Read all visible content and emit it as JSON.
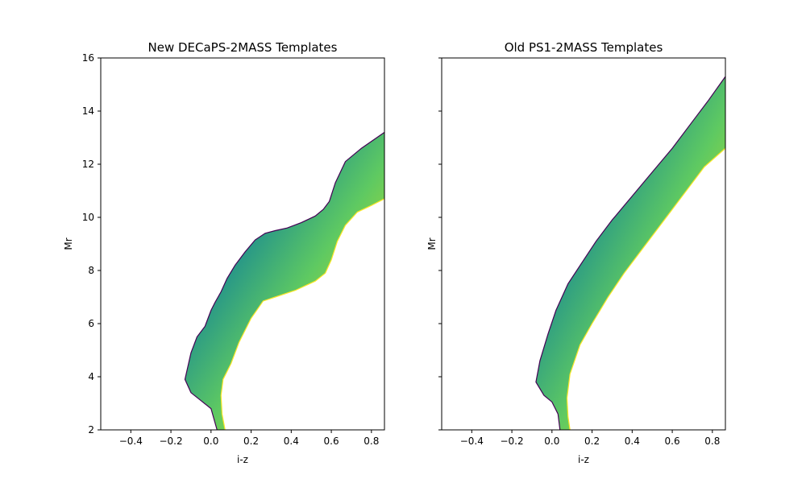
{
  "chart_data": [
    {
      "type": "area",
      "title": "New DECaPS-2MASS Templates",
      "xlabel": "i-z",
      "ylabel": "Mr",
      "xlim": [
        -0.55,
        0.865
      ],
      "ylim": [
        2,
        16
      ],
      "xticks": [
        "−0.4",
        "−0.2",
        "0.0",
        "0.2",
        "0.4",
        "0.6",
        "0.8"
      ],
      "xtick_values": [
        -0.4,
        -0.2,
        0.0,
        0.2,
        0.4,
        0.6,
        0.8
      ],
      "yticks": [
        "2",
        "4",
        "6",
        "8",
        "10",
        "12",
        "14",
        "16"
      ],
      "ytick_values": [
        2,
        4,
        6,
        8,
        10,
        12,
        14,
        16
      ],
      "show_ytick_labels": true,
      "colormap": "viridis",
      "series": [
        {
          "edge": "upper",
          "x": [
            0.03,
            0.0,
            -0.05,
            -0.1,
            -0.13,
            -0.1,
            -0.07,
            -0.03,
            0.0,
            0.02,
            0.05,
            0.08,
            0.12,
            0.17,
            0.22,
            0.27,
            0.32,
            0.38,
            0.45,
            0.52,
            0.56,
            0.59,
            0.62,
            0.67,
            0.75,
            0.865
          ],
          "y": [
            2.0,
            2.8,
            3.1,
            3.4,
            3.9,
            4.9,
            5.5,
            5.9,
            6.5,
            6.8,
            7.2,
            7.7,
            8.2,
            8.7,
            9.15,
            9.4,
            9.5,
            9.6,
            9.8,
            10.05,
            10.3,
            10.6,
            11.3,
            12.1,
            12.6,
            13.2
          ]
        },
        {
          "edge": "lower",
          "x": [
            0.07,
            0.055,
            0.05,
            0.06,
            0.1,
            0.14,
            0.2,
            0.26,
            0.32,
            0.42,
            0.52,
            0.57,
            0.6,
            0.63,
            0.67,
            0.73,
            0.8,
            0.865
          ],
          "y": [
            2.0,
            2.6,
            3.3,
            3.9,
            4.5,
            5.3,
            6.2,
            6.85,
            7.0,
            7.25,
            7.6,
            7.9,
            8.4,
            9.1,
            9.7,
            10.2,
            10.45,
            10.7
          ]
        }
      ]
    },
    {
      "type": "area",
      "title": "Old PS1-2MASS Templates",
      "xlabel": "i-z",
      "ylabel": "Mr",
      "xlim": [
        -0.55,
        0.865
      ],
      "ylim": [
        2,
        16
      ],
      "xticks": [
        "−0.4",
        "−0.2",
        "0.0",
        "0.2",
        "0.4",
        "0.6",
        "0.8"
      ],
      "xtick_values": [
        -0.4,
        -0.2,
        0.0,
        0.2,
        0.4,
        0.6,
        0.8
      ],
      "yticks": [
        "2",
        "4",
        "6",
        "8",
        "10",
        "12",
        "14",
        "16"
      ],
      "ytick_values": [
        2,
        4,
        6,
        8,
        10,
        12,
        14,
        16
      ],
      "show_ytick_labels": false,
      "colormap": "viridis",
      "series": [
        {
          "edge": "upper",
          "x": [
            0.04,
            0.03,
            0.0,
            -0.04,
            -0.08,
            -0.06,
            -0.02,
            0.02,
            0.08,
            0.15,
            0.22,
            0.3,
            0.4,
            0.5,
            0.6,
            0.7,
            0.78,
            0.865
          ],
          "y": [
            2.0,
            2.6,
            3.05,
            3.3,
            3.8,
            4.6,
            5.6,
            6.5,
            7.5,
            8.3,
            9.1,
            9.9,
            10.8,
            11.7,
            12.6,
            13.6,
            14.4,
            15.3
          ]
        },
        {
          "edge": "lower",
          "x": [
            0.09,
            0.08,
            0.075,
            0.09,
            0.14,
            0.2,
            0.28,
            0.36,
            0.44,
            0.52,
            0.6,
            0.68,
            0.76,
            0.865
          ],
          "y": [
            2.0,
            2.5,
            3.2,
            4.1,
            5.2,
            6.0,
            7.0,
            7.9,
            8.7,
            9.5,
            10.3,
            11.1,
            11.9,
            12.6
          ]
        }
      ]
    }
  ]
}
